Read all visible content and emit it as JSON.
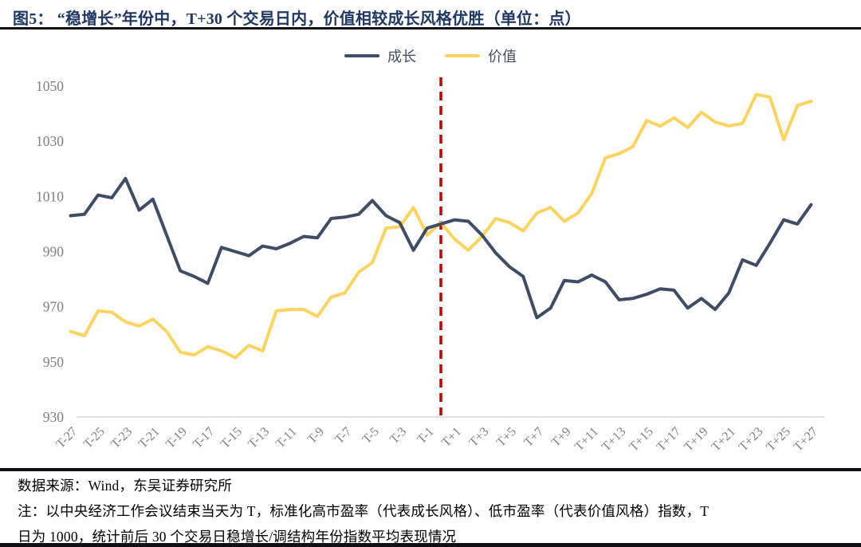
{
  "title": "图5：  “稳增长”年份中，T+30 个交易日内，价值相较成长风格优胜（单位：点）",
  "colors": {
    "title": "#1f3864",
    "rule": "#101014",
    "axis_line": "#d6d6d6",
    "tick_label": "#7f7f7f",
    "growth_line": "#3f4c66",
    "value_line": "#ffd45e",
    "event_line": "#c00000",
    "background": "#ffffff"
  },
  "legend": {
    "items": [
      {
        "label": "成长"
      },
      {
        "label": "价值"
      }
    ]
  },
  "chart_data": {
    "type": "line",
    "title": "",
    "xlabel": "",
    "ylabel": "",
    "grid": false,
    "legend_position": "top-center",
    "ylim": [
      930,
      1050
    ],
    "yticks": [
      930,
      950,
      970,
      990,
      1010,
      1030,
      1050
    ],
    "xtick_labels": [
      "T-27",
      "T-25",
      "T-23",
      "T-21",
      "T-19",
      "T-17",
      "T-15",
      "T-13",
      "T-11",
      "T-9",
      "T-7",
      "T-5",
      "T-3",
      "T-1",
      "T+1",
      "T+3",
      "T+5",
      "T+7",
      "T+9",
      "T+11",
      "T+13",
      "T+15",
      "T+17",
      "T+19",
      "T+21",
      "T+23",
      "T+25",
      "T+27"
    ],
    "x": [
      -27,
      -26,
      -25,
      -24,
      -23,
      -22,
      -21,
      -20,
      -19,
      -18,
      -17,
      -16,
      -15,
      -14,
      -13,
      -12,
      -11,
      -10,
      -9,
      -8,
      -7,
      -6,
      -5,
      -4,
      -3,
      -2,
      -1,
      0,
      1,
      2,
      3,
      4,
      5,
      6,
      7,
      8,
      9,
      10,
      11,
      12,
      13,
      14,
      15,
      16,
      17,
      18,
      19,
      20,
      21,
      22,
      23,
      24,
      25,
      26,
      27
    ],
    "event_line": {
      "x_day": 0,
      "color": "#c00000",
      "style": "dashed"
    },
    "series": [
      {
        "name": "成长",
        "key": "growth",
        "color": "#3f4c66",
        "values": [
          1003,
          1003.5,
          1010.5,
          1009.5,
          1016.5,
          1005,
          1009,
          996,
          983,
          981,
          978.5,
          991.5,
          990,
          988.5,
          992,
          991,
          993,
          995.5,
          995,
          1002,
          1002.5,
          1003.5,
          1008.5,
          1003,
          1000.5,
          990.5,
          998.5,
          1000,
          1001.5,
          1001,
          996,
          989.5,
          984.5,
          981,
          966,
          969.5,
          979.5,
          979,
          981.5,
          979,
          972.5,
          973,
          974.5,
          976.5,
          976,
          969.5,
          973,
          969,
          975,
          987,
          985,
          993,
          1001.5,
          1000,
          1007
        ]
      },
      {
        "name": "价值",
        "key": "value",
        "color": "#ffd45e",
        "values": [
          961,
          959.5,
          968.5,
          968,
          964.5,
          963,
          965.5,
          961,
          953.5,
          952.5,
          955.5,
          954,
          951.5,
          956,
          954,
          968.5,
          969,
          969,
          966.5,
          973.5,
          975,
          982.5,
          986,
          998.5,
          999,
          1006,
          996,
          1000.5,
          994.5,
          990.5,
          995.5,
          1002,
          1000.5,
          997.5,
          1004,
          1006,
          1001,
          1004,
          1011,
          1024,
          1025.5,
          1028,
          1037.5,
          1035.5,
          1038.5,
          1035,
          1040.5,
          1037,
          1035.5,
          1036.5,
          1047,
          1046,
          1030.5,
          1043,
          1044.5
        ]
      }
    ]
  },
  "footer": {
    "source": "数据来源：Wind，东吴证券研究所",
    "note_line1": "注：以中央经济工作会议结束当天为 T，标准化高市盈率（代表成长风格）、低市盈率（代表价值风格）指数，T",
    "note_line2": "日为 1000，统计前后 30 个交易日稳增长/调结构年份指数平均表现情况"
  }
}
